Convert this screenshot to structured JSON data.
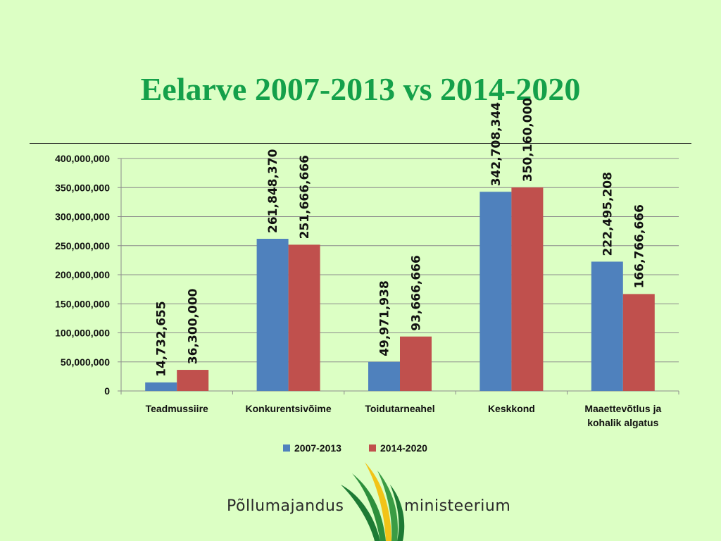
{
  "title": "Eelarve 2007-2013 vs 2014-2020",
  "colors": {
    "series1": "#4f81bd",
    "series2": "#c0504d",
    "title": "#14a04a"
  },
  "chart_data": {
    "type": "bar",
    "categories": [
      [
        "Teadmussiire"
      ],
      [
        "Konkurentsivõime"
      ],
      [
        "Toidutarneahel"
      ],
      [
        "Keskkond"
      ],
      [
        "Maaettevõtlus ja",
        "kohalik algatus"
      ]
    ],
    "series": [
      {
        "name": "2007-2013",
        "values": [
          14732655,
          261848370,
          49971938,
          342708344,
          222495208
        ],
        "labels": [
          "14,732,655",
          "261,848,370",
          "49,971,938",
          "342,708,344",
          "222,495,208"
        ]
      },
      {
        "name": "2014-2020",
        "values": [
          36300000,
          251666666,
          93666666,
          350160000,
          166766666
        ],
        "labels": [
          "36,300,000",
          "251,666,666",
          "93,666,666",
          "350,160,000",
          "166,766,666"
        ]
      }
    ],
    "ylim": [
      0,
      400000000
    ],
    "yticks": [
      0,
      50000000,
      100000000,
      150000000,
      200000000,
      250000000,
      300000000,
      350000000,
      400000000
    ],
    "ytick_labels": [
      "0",
      "50,000,000",
      "100,000,000",
      "150,000,000",
      "200,000,000",
      "250,000,000",
      "300,000,000",
      "350,000,000",
      "400,000,000"
    ],
    "grid": true,
    "legend_position": "bottom"
  },
  "logo": {
    "left_text": "Põllumajandus",
    "right_text": "ministeerium"
  }
}
